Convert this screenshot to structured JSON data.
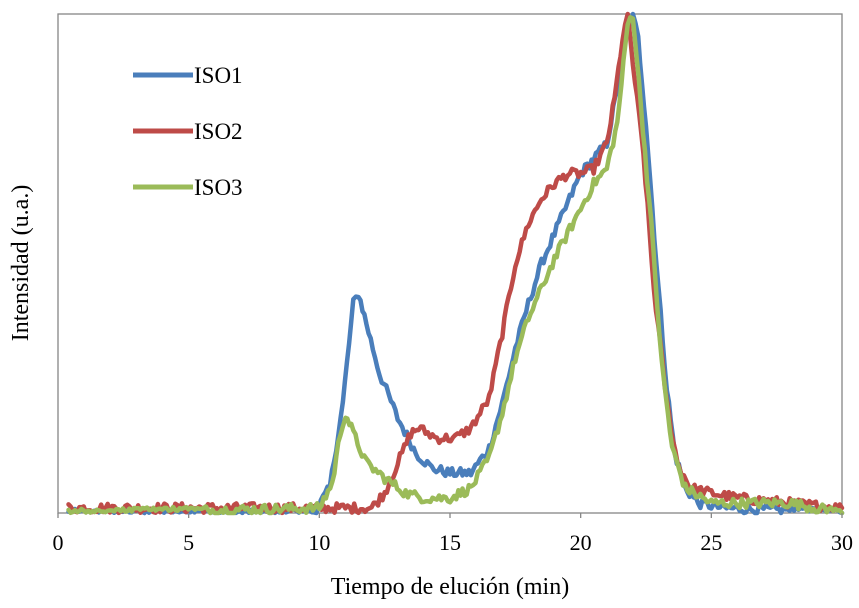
{
  "chart_data": {
    "type": "line",
    "title": "",
    "xlabel": "Tiempo de elución (min)",
    "ylabel": "Intensidad (u.a.)",
    "xlim": [
      0,
      30
    ],
    "ylim": [
      0,
      1
    ],
    "xticks": [
      "0",
      "5",
      "10",
      "15",
      "20",
      "25",
      "30"
    ],
    "grid": false,
    "legend_position": "top-left",
    "series": [
      {
        "name": "ISO1",
        "color": "#4a7ebb",
        "points": [
          [
            0.4,
            0
          ],
          [
            9.8,
            0
          ],
          [
            10.4,
            0.05
          ],
          [
            10.9,
            0.22
          ],
          [
            11.3,
            0.42
          ],
          [
            11.5,
            0.44
          ],
          [
            11.8,
            0.38
          ],
          [
            12.3,
            0.28
          ],
          [
            13,
            0.19
          ],
          [
            13.7,
            0.12
          ],
          [
            14.3,
            0.09
          ],
          [
            15,
            0.08
          ],
          [
            15.8,
            0.08
          ],
          [
            16.5,
            0.13
          ],
          [
            17,
            0.22
          ],
          [
            17.5,
            0.33
          ],
          [
            18,
            0.42
          ],
          [
            18.5,
            0.5
          ],
          [
            19,
            0.56
          ],
          [
            19.5,
            0.62
          ],
          [
            20,
            0.68
          ],
          [
            20.5,
            0.71
          ],
          [
            21,
            0.74
          ],
          [
            21.4,
            0.85
          ],
          [
            21.8,
            0.97
          ],
          [
            22,
            1.0
          ],
          [
            22.2,
            0.95
          ],
          [
            22.5,
            0.78
          ],
          [
            22.9,
            0.5
          ],
          [
            23.3,
            0.25
          ],
          [
            23.6,
            0.12
          ],
          [
            24,
            0.05
          ],
          [
            24.5,
            0.02
          ],
          [
            25.5,
            0.01
          ],
          [
            30,
            0
          ]
        ]
      },
      {
        "name": "ISO2",
        "color": "#be4b48",
        "points": [
          [
            0.4,
            0.01
          ],
          [
            12,
            0.01
          ],
          [
            12.5,
            0.04
          ],
          [
            13,
            0.1
          ],
          [
            13.5,
            0.16
          ],
          [
            13.8,
            0.17
          ],
          [
            14.5,
            0.15
          ],
          [
            15.2,
            0.15
          ],
          [
            15.8,
            0.17
          ],
          [
            16.5,
            0.23
          ],
          [
            17,
            0.36
          ],
          [
            17.5,
            0.5
          ],
          [
            18,
            0.58
          ],
          [
            18.5,
            0.63
          ],
          [
            19,
            0.66
          ],
          [
            19.5,
            0.68
          ],
          [
            20,
            0.68
          ],
          [
            20.5,
            0.69
          ],
          [
            21,
            0.74
          ],
          [
            21.3,
            0.83
          ],
          [
            21.6,
            0.95
          ],
          [
            21.8,
            1.0
          ],
          [
            22.0,
            0.9
          ],
          [
            22.4,
            0.72
          ],
          [
            22.8,
            0.45
          ],
          [
            23.3,
            0.22
          ],
          [
            23.7,
            0.1
          ],
          [
            24.2,
            0.05
          ],
          [
            25,
            0.04
          ],
          [
            26,
            0.03
          ],
          [
            28,
            0.02
          ],
          [
            30,
            0.01
          ]
        ]
      },
      {
        "name": "ISO3",
        "color": "#9bbb59",
        "points": [
          [
            0.4,
            0
          ],
          [
            10,
            0.01
          ],
          [
            10.5,
            0.06
          ],
          [
            10.8,
            0.16
          ],
          [
            11.0,
            0.2
          ],
          [
            11.3,
            0.16
          ],
          [
            11.8,
            0.1
          ],
          [
            12.5,
            0.07
          ],
          [
            13.3,
            0.04
          ],
          [
            14,
            0.03
          ],
          [
            15,
            0.03
          ],
          [
            15.8,
            0.05
          ],
          [
            16.5,
            0.11
          ],
          [
            17,
            0.2
          ],
          [
            17.5,
            0.31
          ],
          [
            18,
            0.39
          ],
          [
            18.5,
            0.45
          ],
          [
            19,
            0.51
          ],
          [
            19.5,
            0.56
          ],
          [
            20,
            0.61
          ],
          [
            20.5,
            0.66
          ],
          [
            21,
            0.69
          ],
          [
            21.4,
            0.78
          ],
          [
            21.8,
            0.98
          ],
          [
            22.0,
            1.0
          ],
          [
            22.3,
            0.82
          ],
          [
            22.7,
            0.58
          ],
          [
            23.1,
            0.3
          ],
          [
            23.5,
            0.13
          ],
          [
            24,
            0.05
          ],
          [
            25,
            0.02
          ],
          [
            28,
            0.02
          ],
          [
            30,
            0
          ]
        ]
      }
    ]
  }
}
